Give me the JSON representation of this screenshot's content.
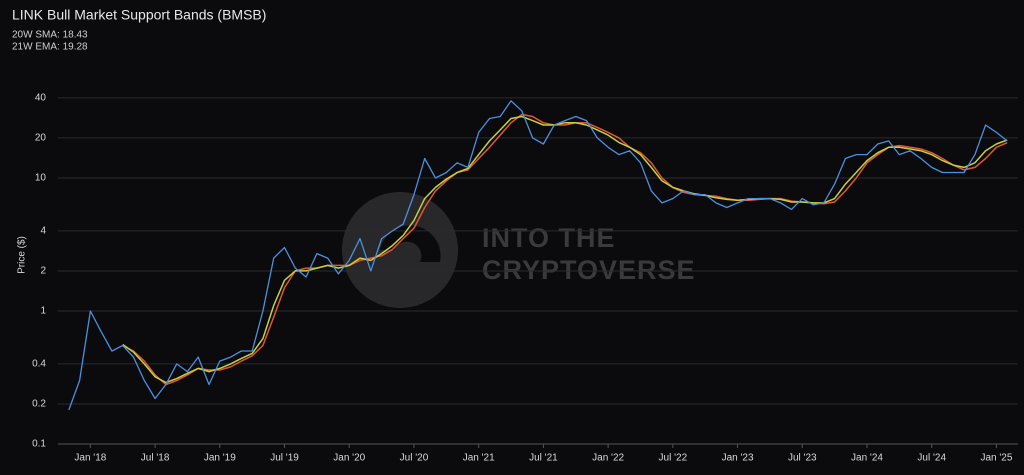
{
  "chart_data": {
    "type": "line",
    "title": "LINK Bull Market Support Bands (BMSB)",
    "legend": [
      "20W SMA: 18.43",
      "21W EMA: 19.28"
    ],
    "y_label": "Price ($)",
    "watermark": [
      "INTO THE",
      "CRYPTOVERSE"
    ],
    "log_scale": true,
    "grid": true,
    "ylim": [
      0.1,
      50
    ],
    "yticks": [
      0.1,
      0.2,
      0.4,
      1,
      2,
      4,
      10,
      20,
      40
    ],
    "xlim": [
      "2017-10",
      "2025-03"
    ],
    "xticks": [
      {
        "value": "2018-01",
        "label": "Jan '18"
      },
      {
        "value": "2018-07",
        "label": "Jul '18"
      },
      {
        "value": "2019-01",
        "label": "Jan '19"
      },
      {
        "value": "2019-07",
        "label": "Jul '19"
      },
      {
        "value": "2020-01",
        "label": "Jan '20"
      },
      {
        "value": "2020-07",
        "label": "Jul '20"
      },
      {
        "value": "2021-01",
        "label": "Jan '21"
      },
      {
        "value": "2021-07",
        "label": "Jul '21"
      },
      {
        "value": "2022-01",
        "label": "Jan '22"
      },
      {
        "value": "2022-07",
        "label": "Jul '22"
      },
      {
        "value": "2023-01",
        "label": "Jan '23"
      },
      {
        "value": "2023-07",
        "label": "Jul '23"
      },
      {
        "value": "2024-01",
        "label": "Jan '24"
      },
      {
        "value": "2024-07",
        "label": "Jul '24"
      },
      {
        "value": "2025-01",
        "label": "Jan '25"
      }
    ],
    "x": [
      "2017-11",
      "2017-12",
      "2018-01",
      "2018-02",
      "2018-03",
      "2018-04",
      "2018-05",
      "2018-06",
      "2018-07",
      "2018-08",
      "2018-09",
      "2018-10",
      "2018-11",
      "2018-12",
      "2019-01",
      "2019-02",
      "2019-03",
      "2019-04",
      "2019-05",
      "2019-06",
      "2019-07",
      "2019-08",
      "2019-09",
      "2019-10",
      "2019-11",
      "2019-12",
      "2020-01",
      "2020-02",
      "2020-03",
      "2020-04",
      "2020-05",
      "2020-06",
      "2020-07",
      "2020-08",
      "2020-09",
      "2020-10",
      "2020-11",
      "2020-12",
      "2021-01",
      "2021-02",
      "2021-03",
      "2021-04",
      "2021-05",
      "2021-06",
      "2021-07",
      "2021-08",
      "2021-09",
      "2021-10",
      "2021-11",
      "2021-12",
      "2022-01",
      "2022-02",
      "2022-03",
      "2022-04",
      "2022-05",
      "2022-06",
      "2022-07",
      "2022-08",
      "2022-09",
      "2022-10",
      "2022-11",
      "2022-12",
      "2023-01",
      "2023-02",
      "2023-03",
      "2023-04",
      "2023-05",
      "2023-06",
      "2023-07",
      "2023-08",
      "2023-09",
      "2023-10",
      "2023-11",
      "2023-12",
      "2024-01",
      "2024-02",
      "2024-03",
      "2024-04",
      "2024-05",
      "2024-06",
      "2024-07",
      "2024-08",
      "2024-09",
      "2024-10",
      "2024-11",
      "2024-12",
      "2025-01",
      "2025-02"
    ],
    "series": [
      {
        "color": "#4a8fe0",
        "values": [
          0.18,
          0.3,
          1.0,
          0.7,
          0.5,
          0.55,
          0.45,
          0.3,
          0.22,
          0.28,
          0.4,
          0.35,
          0.45,
          0.28,
          0.42,
          0.45,
          0.5,
          0.5,
          1.0,
          2.5,
          3.0,
          2.1,
          1.8,
          2.7,
          2.5,
          1.9,
          2.4,
          3.5,
          2.0,
          3.5,
          4.0,
          4.5,
          7.5,
          14,
          10,
          11,
          13,
          12,
          22,
          28,
          29,
          38,
          32,
          20,
          18,
          25,
          27,
          29,
          27,
          20,
          17,
          15,
          16,
          13,
          8,
          6.5,
          7,
          8,
          7.5,
          7.5,
          6.5,
          6,
          6.5,
          7,
          7,
          7,
          6.5,
          5.8,
          7,
          6.3,
          6.5,
          9,
          14,
          15,
          15,
          18,
          19,
          15,
          16,
          14,
          12,
          11,
          11,
          11,
          15,
          25,
          22,
          19
        ]
      },
      {
        "name": "20W SMA",
        "color": "#e0553a",
        "values": [
          null,
          null,
          null,
          null,
          null,
          0.55,
          0.5,
          0.42,
          0.33,
          0.28,
          0.3,
          0.33,
          0.37,
          0.36,
          0.36,
          0.38,
          0.42,
          0.46,
          0.55,
          0.9,
          1.5,
          2.0,
          2.1,
          2.1,
          2.2,
          2.2,
          2.2,
          2.4,
          2.5,
          2.6,
          2.9,
          3.5,
          4.2,
          6,
          8,
          9.5,
          11,
          11.5,
          14,
          17,
          21,
          26,
          30,
          29,
          26,
          25,
          25,
          26,
          26,
          24,
          22,
          20,
          17,
          15.5,
          13,
          10,
          8.5,
          7.8,
          7.5,
          7.4,
          7.3,
          7,
          6.8,
          6.8,
          6.9,
          7,
          7,
          6.7,
          6.6,
          6.5,
          6.4,
          6.6,
          8,
          10,
          13,
          15,
          17,
          17.5,
          17,
          16.5,
          15.5,
          14,
          12.5,
          11.5,
          12,
          14,
          17,
          18.43
        ]
      },
      {
        "name": "21W EMA",
        "color": "#c5d13a",
        "values": [
          null,
          null,
          null,
          null,
          null,
          0.56,
          0.49,
          0.4,
          0.32,
          0.29,
          0.31,
          0.34,
          0.37,
          0.35,
          0.37,
          0.4,
          0.44,
          0.48,
          0.62,
          1.1,
          1.7,
          2.0,
          2.0,
          2.1,
          2.2,
          2.1,
          2.2,
          2.5,
          2.4,
          2.7,
          3.1,
          3.7,
          4.8,
          7,
          8.5,
          9.8,
          11,
          11.8,
          15,
          19,
          23,
          28,
          29,
          27,
          25,
          25,
          26,
          26,
          25,
          23,
          21,
          18.5,
          17,
          15,
          12,
          9.5,
          8.5,
          8,
          7.6,
          7.4,
          7.1,
          6.9,
          6.8,
          6.9,
          7,
          7,
          6.9,
          6.6,
          6.6,
          6.5,
          6.5,
          7,
          9,
          11,
          13.5,
          15.5,
          17,
          17,
          16.5,
          16,
          15,
          13.5,
          12.5,
          12,
          13,
          16,
          18,
          19.28
        ]
      }
    ]
  }
}
